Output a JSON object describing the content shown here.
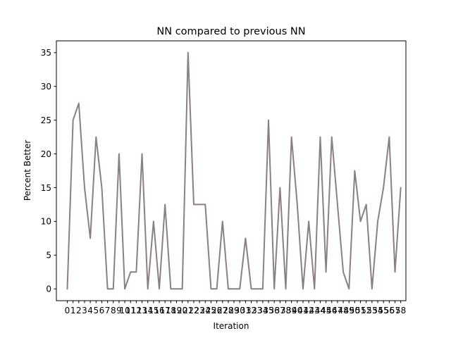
{
  "chart_data": {
    "type": "line",
    "title": "NN compared to previous NN",
    "xlabel": "Iteration",
    "ylabel": "Percent Better",
    "xlim": [
      -1.9,
      58.9
    ],
    "ylim": [
      -1.75,
      36.75
    ],
    "yticks": [
      0,
      5,
      10,
      15,
      20,
      25,
      30,
      35
    ],
    "xticks": [
      0,
      1,
      2,
      3,
      4,
      5,
      6,
      7,
      8,
      9,
      10,
      11,
      12,
      13,
      14,
      15,
      16,
      17,
      18,
      19,
      20,
      21,
      22,
      23,
      24,
      25,
      26,
      27,
      28,
      29,
      30,
      31,
      32,
      33,
      34,
      35,
      36,
      37,
      38,
      39,
      40,
      41,
      42,
      43,
      44,
      45,
      46,
      47,
      48,
      49,
      50,
      51,
      52,
      53,
      54,
      55,
      56,
      57,
      58
    ],
    "grid": false,
    "legend": "none",
    "line_color": "#8a7f86",
    "series": [
      {
        "x": [
          0,
          1,
          2,
          3,
          4,
          5,
          6,
          7,
          8,
          9,
          10,
          11,
          12,
          13,
          14,
          15,
          16,
          17,
          18,
          19,
          20,
          21,
          22,
          23,
          24,
          25,
          26,
          27,
          28,
          29,
          30,
          31,
          32,
          33,
          34,
          35,
          36,
          37,
          38,
          39,
          40,
          41,
          42,
          43,
          44,
          45,
          46,
          47,
          48,
          49,
          50,
          51,
          52,
          53,
          54,
          55,
          56,
          57,
          58
        ],
        "values": [
          0,
          25,
          27.5,
          15,
          7.5,
          22.5,
          15,
          0,
          0,
          20,
          0,
          2.5,
          2.5,
          20,
          0,
          10,
          0,
          12.5,
          0,
          0,
          0,
          35,
          12.5,
          12.5,
          12.5,
          0,
          0,
          10,
          0,
          0,
          0,
          7.5,
          0,
          0,
          0,
          25,
          0,
          15,
          0,
          22.5,
          12.5,
          0,
          10,
          0,
          22.5,
          2.5,
          22.5,
          12.5,
          2.5,
          0,
          17.5,
          10,
          12.5,
          0,
          10,
          15,
          22.5,
          2.5,
          15
        ]
      }
    ]
  }
}
